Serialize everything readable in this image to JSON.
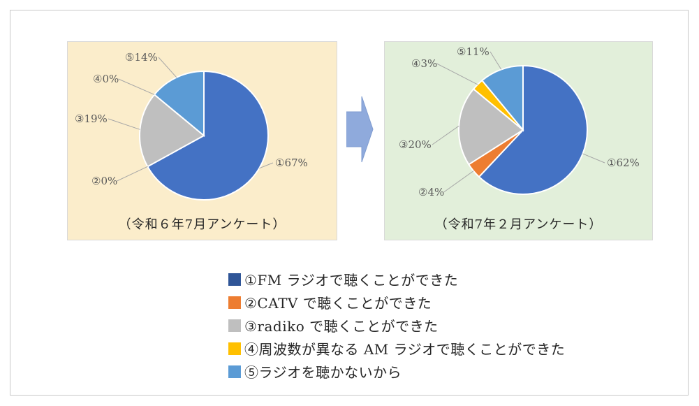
{
  "colors": {
    "series": [
      "#4472c4",
      "#ed7d31",
      "#bfbfbf",
      "#ffc000",
      "#5b9bd5"
    ],
    "panel_left_bg": "#fbedcb",
    "panel_right_bg": "#e2efda",
    "arrow": "#8faadc"
  },
  "arrow_icon": "right-arrow-icon",
  "legend": {
    "items": [
      "①FM ラジオで聴くことができた",
      "②CATV で聴くことができた",
      "③radiko で聴くことができた",
      "④周波数が異なる AM ラジオで聴くことができた",
      "⑤ラジオを聴かないから"
    ]
  },
  "chart_data": [
    {
      "type": "pie",
      "title": "（令和６年7月アンケート）",
      "categories": [
        "①",
        "②",
        "③",
        "④",
        "⑤"
      ],
      "values": [
        67,
        0,
        19,
        0,
        14
      ],
      "labels": [
        "①67%",
        "②0%",
        "③19%",
        "④0%",
        "⑤14%"
      ],
      "start_angle": "12 o'clock",
      "direction": "clockwise"
    },
    {
      "type": "pie",
      "title": "（令和7年２月アンケート）",
      "categories": [
        "①",
        "②",
        "③",
        "④",
        "⑤"
      ],
      "values": [
        62,
        4,
        20,
        3,
        11
      ],
      "labels": [
        "①62%",
        "②4%",
        "③20%",
        "④3%",
        "⑤11%"
      ],
      "start_angle": "12 o'clock",
      "direction": "clockwise"
    }
  ]
}
